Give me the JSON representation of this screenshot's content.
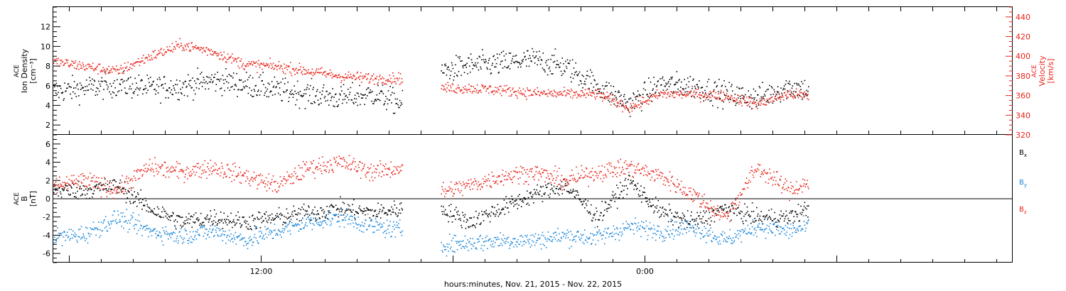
{
  "colors": {
    "black": "#000000",
    "red": "#e8231a",
    "blue": "#1a86d8"
  },
  "time_axis": {
    "xlabel": "hours:minutes, Nov. 21, 2015 - Nov. 22, 2015",
    "tick_labels": [
      {
        "t": 12,
        "label": "12:00"
      },
      {
        "t": 24,
        "label": "0:00"
      }
    ],
    "xlim_hours": [
      5.5,
      35.5
    ]
  },
  "chart_data": [
    {
      "type": "scatter",
      "title": "",
      "ylabel_left": [
        "ACE",
        "Ion Density",
        "[cm⁻³]"
      ],
      "ylabel_right": [
        "ACE",
        "Velocity",
        "[km/s]"
      ],
      "left_axis": {
        "ylim": [
          1,
          14
        ],
        "ticks": [
          2,
          4,
          6,
          8,
          10,
          12
        ],
        "color": "#000000"
      },
      "right_axis": {
        "ylim": [
          320,
          450
        ],
        "ticks": [
          320,
          340,
          360,
          380,
          400,
          420,
          440
        ],
        "color": "#e8231a"
      },
      "grid": false,
      "data_gap_hours": [
        16.4,
        17.6
      ],
      "data_end_hours": 29.1,
      "series": [
        {
          "axis": "left",
          "color": "#000000",
          "x": [
            5.5,
            6.5,
            7.5,
            8.5,
            9.5,
            10.5,
            11.5,
            12.5,
            13.5,
            14.5,
            15.5,
            16.5,
            17.6,
            18.5,
            19.5,
            20.5,
            21.5,
            22.5,
            23.5,
            24.5,
            25.5,
            26.5,
            27.5,
            28.5,
            29.1
          ],
          "y": [
            5.5,
            5.8,
            6.2,
            5.8,
            6.0,
            6.6,
            6.2,
            5.6,
            5.2,
            4.8,
            5.2,
            4.1,
            7.5,
            8.1,
            8.3,
            8.7,
            8.0,
            6.0,
            4.2,
            6.2,
            6.0,
            5.2,
            4.8,
            6.0,
            5.6
          ]
        },
        {
          "axis": "right",
          "color": "#e8231a",
          "x": [
            5.5,
            6.5,
            7.5,
            8.5,
            9.5,
            10.5,
            11.5,
            12.5,
            13.5,
            14.5,
            15.5,
            16.5,
            17.6,
            18.5,
            19.5,
            20.5,
            21.5,
            22.5,
            23.5,
            24.5,
            25.5,
            26.5,
            27.5,
            28.5,
            29.1
          ],
          "y": [
            395,
            390,
            385,
            400,
            412,
            405,
            392,
            390,
            385,
            380,
            378,
            378,
            368,
            368,
            366,
            363,
            362,
            362,
            348,
            362,
            362,
            360,
            352,
            362,
            360
          ]
        }
      ]
    },
    {
      "type": "scatter",
      "title": "",
      "ylabel_left": [
        "ACE",
        "B",
        "[nT]"
      ],
      "left_axis": {
        "ylim": [
          -7,
          7
        ],
        "ticks": [
          -6,
          -4,
          -2,
          0,
          2,
          4,
          6
        ],
        "color": "#000000"
      },
      "zero_line": true,
      "grid": false,
      "data_gap_hours": [
        16.4,
        17.6
      ],
      "data_end_hours": 29.1,
      "series": [
        {
          "name": "Bx",
          "legend_main": "B",
          "legend_sub": "x",
          "color": "#000000",
          "x": [
            5.5,
            6.5,
            7.5,
            8.5,
            9.5,
            10.5,
            11.5,
            12.5,
            13.5,
            14.5,
            15.5,
            16.5,
            17.6,
            18.5,
            19.5,
            20.5,
            21.5,
            22.5,
            23.5,
            24.5,
            25.5,
            26.5,
            27.5,
            28.5,
            29.1
          ],
          "y": [
            1.0,
            1.0,
            1.5,
            -1.0,
            -2.5,
            -2.0,
            -2.5,
            -2.0,
            -1.5,
            -1.0,
            -1.5,
            -1.0,
            -1.0,
            -2.5,
            -1.0,
            0.5,
            1.5,
            -2.0,
            2.0,
            -1.5,
            -2.5,
            -1.0,
            -2.0,
            -2.0,
            -1.0
          ]
        },
        {
          "name": "By",
          "legend_main": "B",
          "legend_sub": "y",
          "color": "#1a86d8",
          "x": [
            5.5,
            6.5,
            7.5,
            8.5,
            9.5,
            10.5,
            11.5,
            12.5,
            13.5,
            14.5,
            15.5,
            16.5,
            17.6,
            18.5,
            19.5,
            20.5,
            21.5,
            22.5,
            23.5,
            24.5,
            25.5,
            26.5,
            27.5,
            28.5,
            29.1
          ],
          "y": [
            -4.2,
            -3.8,
            -2.0,
            -3.5,
            -4.0,
            -3.5,
            -4.5,
            -3.5,
            -2.5,
            -2.0,
            -3.0,
            -3.5,
            -5.0,
            -4.8,
            -4.5,
            -4.5,
            -4.0,
            -4.2,
            -3.0,
            -3.5,
            -3.0,
            -4.5,
            -3.0,
            -3.5,
            -3.0
          ]
        },
        {
          "name": "Bz",
          "legend_main": "B",
          "legend_sub": "z",
          "color": "#e8231a",
          "x": [
            5.5,
            6.5,
            7.5,
            8.5,
            9.5,
            10.5,
            11.5,
            12.5,
            13.5,
            14.5,
            15.5,
            16.5,
            17.6,
            18.5,
            19.5,
            20.5,
            21.5,
            22.5,
            23.5,
            24.5,
            25.5,
            26.5,
            27.5,
            28.5,
            29.1
          ],
          "y": [
            1.5,
            2.0,
            1.0,
            3.5,
            3.0,
            3.5,
            2.5,
            1.5,
            3.5,
            4.0,
            3.0,
            3.5,
            0.8,
            1.5,
            2.5,
            3.0,
            2.0,
            3.0,
            3.5,
            2.5,
            0.5,
            -2.0,
            3.5,
            1.0,
            1.8
          ]
        }
      ]
    }
  ]
}
